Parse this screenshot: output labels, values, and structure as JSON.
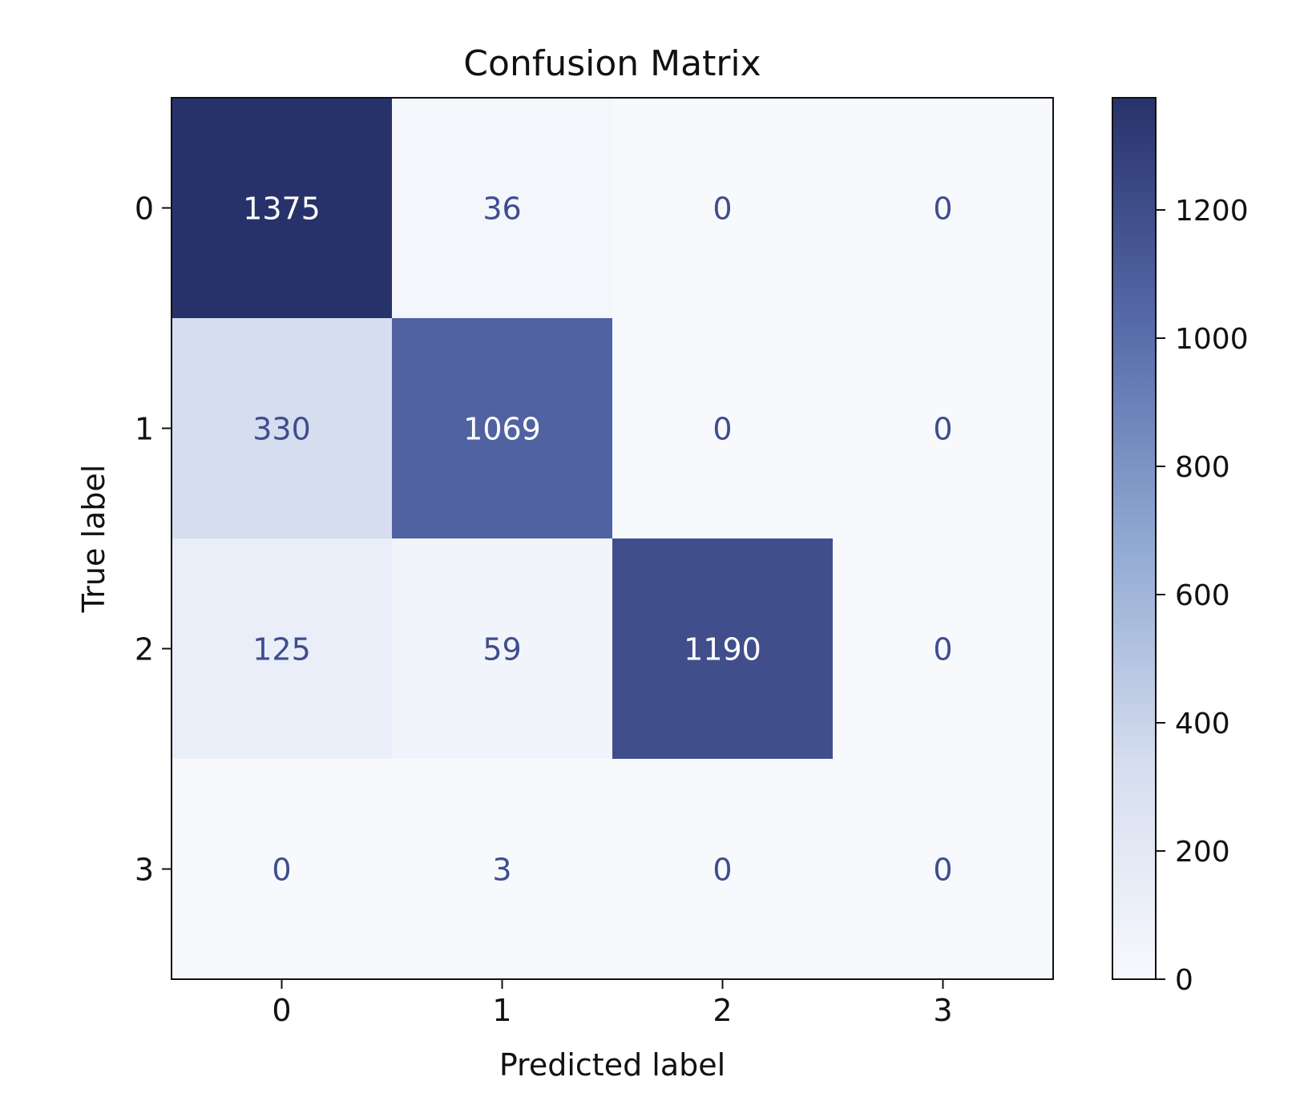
{
  "chart_data": {
    "type": "heatmap",
    "title": "Confusion Matrix",
    "xlabel": "Predicted label",
    "ylabel": "True label",
    "x_categories": [
      "0",
      "1",
      "2",
      "3"
    ],
    "y_categories": [
      "0",
      "1",
      "2",
      "3"
    ],
    "values": [
      [
        1375,
        36,
        0,
        0
      ],
      [
        330,
        1069,
        0,
        0
      ],
      [
        125,
        59,
        1190,
        0
      ],
      [
        0,
        3,
        0,
        0
      ]
    ],
    "colorbar": {
      "range": [
        0,
        1375
      ],
      "ticks": [
        0,
        200,
        400,
        600,
        800,
        1000,
        1200
      ]
    },
    "colormap": [
      "#f7f9fd",
      "#d4dcee",
      "#8fa8d1",
      "#5568a8",
      "#28326a"
    ],
    "text_colors": {
      "light": "#ffffff",
      "dark": "#3f4d8f"
    }
  }
}
